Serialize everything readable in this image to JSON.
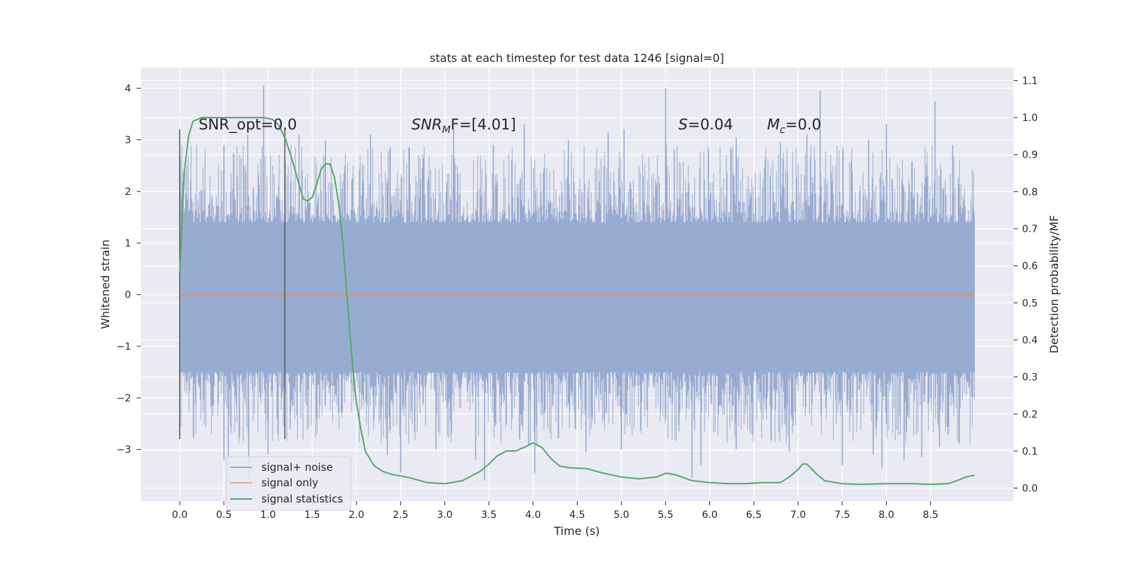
{
  "chart_data": {
    "type": "line",
    "title": "stats at each timestep for test data 1246 [signal=0]",
    "xlabel": "Time (s)",
    "ylabel": "Whitened strain",
    "y2label": "Detection probability/MF",
    "xlim": [
      -0.44,
      9.44
    ],
    "ylim": [
      -4.0,
      4.4
    ],
    "y2lim": [
      -0.035,
      1.135
    ],
    "xticks": [
      "0.0",
      "0.5",
      "1.0",
      "1.5",
      "2.0",
      "2.5",
      "3.0",
      "3.5",
      "4.0",
      "4.5",
      "5.0",
      "5.5",
      "6.0",
      "6.5",
      "7.0",
      "7.5",
      "8.0",
      "8.5"
    ],
    "yticks": [
      "4",
      "3",
      "2",
      "1",
      "0",
      "−1",
      "−2",
      "−3"
    ],
    "y2ticks": [
      "1.1",
      "1.0",
      "0.9",
      "0.8",
      "0.7",
      "0.6",
      "0.5",
      "0.4",
      "0.3",
      "0.2",
      "0.1",
      "0.0"
    ],
    "grid": true,
    "legend_position": "lower-left",
    "annotations": {
      "snr_opt": "SNR_opt=0.0",
      "snr_mf_base": "SNR",
      "snr_mf_sub": "M",
      "snr_mf_rest": "F=[4.01]",
      "s_var": "S",
      "s_rest": "=0.04",
      "mc_var": "M",
      "mc_sub": "c",
      "mc_rest": "=0.0"
    },
    "vlines_x": [
      0.0,
      1.19
    ],
    "series": [
      {
        "name": "signal+ noise",
        "color": "#98abd0",
        "description_type": "dense noise band",
        "band_core": [
          -1.5,
          1.4
        ],
        "t_range": [
          0.0,
          9.0
        ],
        "peaks_up": [
          [
            0.02,
            1.9
          ],
          [
            0.5,
            2.9
          ],
          [
            0.77,
            3.1
          ],
          [
            0.95,
            4.05
          ],
          [
            1.35,
            3.1
          ],
          [
            1.65,
            3.0
          ],
          [
            2.16,
            3.1
          ],
          [
            2.6,
            2.85
          ],
          [
            3.1,
            3.2
          ],
          [
            3.55,
            2.9
          ],
          [
            3.9,
            3.3
          ],
          [
            4.4,
            3.0
          ],
          [
            4.85,
            3.15
          ],
          [
            5.03,
            3.2
          ],
          [
            5.5,
            4.0
          ],
          [
            5.6,
            2.8
          ],
          [
            6.3,
            3.05
          ],
          [
            6.8,
            2.95
          ],
          [
            7.1,
            3.1
          ],
          [
            7.25,
            3.95
          ],
          [
            7.8,
            3.0
          ],
          [
            8.0,
            3.3
          ],
          [
            8.55,
            3.75
          ],
          [
            8.75,
            2.9
          ]
        ],
        "peaks_down": [
          [
            0.5,
            -3.2
          ],
          [
            0.55,
            -3.7
          ],
          [
            0.78,
            -3.6
          ],
          [
            1.0,
            -3.1
          ],
          [
            1.25,
            -2.6
          ],
          [
            2.35,
            -3.1
          ],
          [
            2.5,
            -3.45
          ],
          [
            2.9,
            -3.0
          ],
          [
            3.35,
            -3.2
          ],
          [
            3.45,
            -3.6
          ],
          [
            3.95,
            -2.9
          ],
          [
            4.02,
            -3.45
          ],
          [
            4.6,
            -3.05
          ],
          [
            5.0,
            -3.0
          ],
          [
            5.8,
            -3.55
          ],
          [
            5.9,
            -3.3
          ],
          [
            6.3,
            -3.0
          ],
          [
            6.9,
            -3.05
          ],
          [
            7.5,
            -3.3
          ],
          [
            7.85,
            -3.1
          ],
          [
            7.95,
            -3.35
          ],
          [
            8.2,
            -3.2
          ],
          [
            8.4,
            -3.15
          ],
          [
            8.6,
            -2.95
          ]
        ]
      },
      {
        "name": "signal only",
        "color": "#dd8452",
        "x": [
          0.0,
          9.0
        ],
        "y": [
          0.0,
          0.0
        ]
      },
      {
        "name": "signal statistics",
        "color": "#55a868",
        "axis": "right",
        "x": [
          0.0,
          0.05,
          0.1,
          0.15,
          0.25,
          0.4,
          0.6,
          0.8,
          0.95,
          1.05,
          1.12,
          1.2,
          1.28,
          1.35,
          1.4,
          1.45,
          1.5,
          1.55,
          1.6,
          1.65,
          1.7,
          1.75,
          1.8,
          1.85,
          1.9,
          1.95,
          2.0,
          2.05,
          2.1,
          2.2,
          2.3,
          2.4,
          2.5,
          2.6,
          2.8,
          3.0,
          3.2,
          3.4,
          3.5,
          3.6,
          3.7,
          3.8,
          3.9,
          4.0,
          4.1,
          4.2,
          4.3,
          4.4,
          4.6,
          4.8,
          5.0,
          5.2,
          5.4,
          5.5,
          5.6,
          5.8,
          6.0,
          6.2,
          6.4,
          6.6,
          6.8,
          6.9,
          7.0,
          7.05,
          7.1,
          7.2,
          7.3,
          7.5,
          7.7,
          8.0,
          8.3,
          8.5,
          8.7,
          8.8,
          8.9,
          9.0
        ],
        "y": [
          0.58,
          0.85,
          0.95,
          0.99,
          1.0,
          1.0,
          1.0,
          1.0,
          1.0,
          0.995,
          0.98,
          0.94,
          0.88,
          0.82,
          0.78,
          0.775,
          0.785,
          0.82,
          0.86,
          0.875,
          0.875,
          0.84,
          0.77,
          0.65,
          0.5,
          0.35,
          0.23,
          0.16,
          0.1,
          0.06,
          0.045,
          0.037,
          0.033,
          0.028,
          0.015,
          0.012,
          0.02,
          0.045,
          0.065,
          0.088,
          0.1,
          0.1,
          0.11,
          0.122,
          0.11,
          0.08,
          0.06,
          0.055,
          0.053,
          0.04,
          0.03,
          0.025,
          0.03,
          0.04,
          0.037,
          0.02,
          0.015,
          0.012,
          0.012,
          0.015,
          0.015,
          0.03,
          0.05,
          0.065,
          0.065,
          0.04,
          0.02,
          0.012,
          0.01,
          0.012,
          0.012,
          0.01,
          0.012,
          0.02,
          0.03,
          0.035
        ]
      }
    ]
  }
}
